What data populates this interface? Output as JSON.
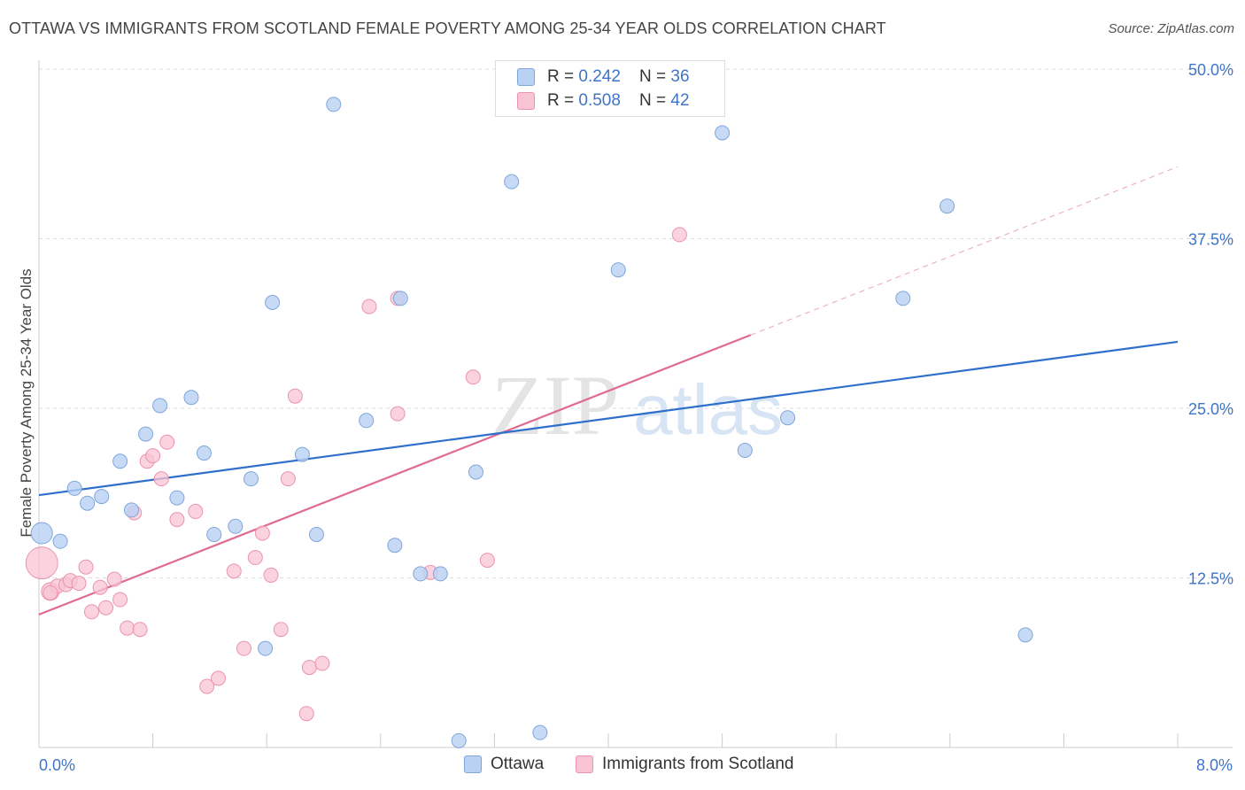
{
  "title": "OTTAWA VS IMMIGRANTS FROM SCOTLAND FEMALE POVERTY AMONG 25-34 YEAR OLDS CORRELATION CHART",
  "source": "Source: ZipAtlas.com",
  "watermark": {
    "zip": "ZIP",
    "atlas": "atlas"
  },
  "colors": {
    "ottawa_fill": "#b9d1f2",
    "ottawa_stroke": "#7ea6dc",
    "ottawa_line": "#2f6fcc",
    "scot_fill": "#f8c4d3",
    "scot_stroke": "#ec93ad",
    "scot_line": "#e06a92",
    "axis_value": "#3f74c6"
  },
  "legend_top": [
    {
      "r_label": "R = ",
      "r_value": "0.242",
      "n_label": "N = ",
      "n_value": "36"
    },
    {
      "r_label": "R = ",
      "r_value": "0.508",
      "n_label": "N = ",
      "n_value": "42"
    }
  ],
  "legend_bottom": [
    "Ottawa",
    "Immigrants from Scotland"
  ],
  "chart_data": {
    "type": "scatter",
    "title": "OTTAWA VS IMMIGRANTS FROM SCOTLAND FEMALE POVERTY AMONG 25-34 YEAR OLDS CORRELATION CHART",
    "xlabel": "",
    "ylabel": "Female Poverty Among 25-34 Year Olds",
    "xlim": [
      0,
      8
    ],
    "ylim": [
      0,
      50
    ],
    "x_tick_labels": [
      "0.0%",
      "8.0%"
    ],
    "y_ticks": [
      12.5,
      25.0,
      37.5,
      50.0
    ],
    "y_tick_labels": [
      "12.5%",
      "25.0%",
      "37.5%",
      "50.0%"
    ],
    "grid": true,
    "legend_position": "bottom",
    "series": [
      {
        "name": "Ottawa",
        "r": 0.242,
        "n": 36,
        "trend": {
          "x0": 0,
          "y0": 18.6,
          "x1": 8,
          "y1": 29.9
        },
        "points": [
          [
            0.02,
            15.8,
            12
          ],
          [
            0.15,
            15.2,
            8
          ],
          [
            0.25,
            19.1,
            8
          ],
          [
            0.34,
            18.0,
            8
          ],
          [
            0.44,
            18.5,
            8
          ],
          [
            0.57,
            21.1,
            8
          ],
          [
            0.65,
            17.5,
            8
          ],
          [
            0.75,
            23.1,
            8
          ],
          [
            0.85,
            25.2,
            8
          ],
          [
            0.97,
            18.4,
            8
          ],
          [
            1.07,
            25.8,
            8
          ],
          [
            1.16,
            21.7,
            8
          ],
          [
            1.23,
            15.7,
            8
          ],
          [
            1.38,
            16.3,
            8
          ],
          [
            1.49,
            19.8,
            8
          ],
          [
            1.59,
            7.3,
            8
          ],
          [
            1.64,
            32.8,
            8
          ],
          [
            1.85,
            21.6,
            8
          ],
          [
            1.95,
            15.7,
            8
          ],
          [
            2.07,
            47.4,
            8
          ],
          [
            2.3,
            24.1,
            8
          ],
          [
            2.5,
            14.9,
            8
          ],
          [
            2.54,
            33.1,
            8
          ],
          [
            2.68,
            12.8,
            8
          ],
          [
            2.82,
            12.8,
            8
          ],
          [
            2.95,
            0.5,
            8
          ],
          [
            3.07,
            20.3,
            8
          ],
          [
            3.32,
            41.7,
            8
          ],
          [
            3.52,
            1.1,
            8
          ],
          [
            4.07,
            35.2,
            8
          ],
          [
            4.8,
            45.3,
            8
          ],
          [
            4.96,
            21.9,
            8
          ],
          [
            5.26,
            24.3,
            8
          ],
          [
            6.07,
            33.1,
            8
          ],
          [
            6.38,
            39.9,
            8
          ],
          [
            6.93,
            8.3,
            8
          ]
        ]
      },
      {
        "name": "Immigrants from Scotland",
        "r": 0.508,
        "n": 42,
        "trend": {
          "x0": 0,
          "y0": 9.8,
          "x1": 5.0,
          "y1": 30.4
        },
        "trend_extension": {
          "x0": 5.0,
          "y0": 30.4,
          "x1": 8,
          "y1": 42.8
        },
        "points": [
          [
            0.02,
            13.6,
            18
          ],
          [
            0.08,
            11.5,
            10
          ],
          [
            0.13,
            11.9,
            8
          ],
          [
            0.19,
            12.0,
            8
          ],
          [
            0.22,
            12.3,
            8
          ],
          [
            0.28,
            12.1,
            8
          ],
          [
            0.33,
            13.3,
            8
          ],
          [
            0.37,
            10.0,
            8
          ],
          [
            0.43,
            11.8,
            8
          ],
          [
            0.47,
            10.3,
            8
          ],
          [
            0.53,
            12.4,
            8
          ],
          [
            0.57,
            10.9,
            8
          ],
          [
            0.62,
            8.8,
            8
          ],
          [
            0.67,
            17.3,
            8
          ],
          [
            0.71,
            8.7,
            8
          ],
          [
            0.76,
            21.1,
            8
          ],
          [
            0.8,
            21.5,
            8
          ],
          [
            0.86,
            19.8,
            8
          ],
          [
            0.9,
            22.5,
            8
          ],
          [
            0.97,
            16.8,
            8
          ],
          [
            1.1,
            17.4,
            8
          ],
          [
            1.18,
            4.5,
            8
          ],
          [
            1.26,
            5.1,
            8
          ],
          [
            1.37,
            13.0,
            8
          ],
          [
            1.44,
            7.3,
            8
          ],
          [
            1.52,
            14.0,
            8
          ],
          [
            1.57,
            15.8,
            8
          ],
          [
            1.63,
            12.7,
            8
          ],
          [
            1.7,
            8.7,
            8
          ],
          [
            1.75,
            19.8,
            8
          ],
          [
            1.8,
            25.9,
            8
          ],
          [
            1.88,
            2.5,
            8
          ],
          [
            1.9,
            5.9,
            8
          ],
          [
            1.99,
            6.2,
            8
          ],
          [
            2.32,
            32.5,
            8
          ],
          [
            2.52,
            33.1,
            8
          ],
          [
            2.52,
            24.6,
            8
          ],
          [
            2.75,
            12.9,
            8
          ],
          [
            3.05,
            27.3,
            8
          ],
          [
            3.15,
            13.8,
            8
          ],
          [
            4.5,
            37.8,
            8
          ],
          [
            0.08,
            11.4,
            8
          ]
        ]
      }
    ]
  }
}
